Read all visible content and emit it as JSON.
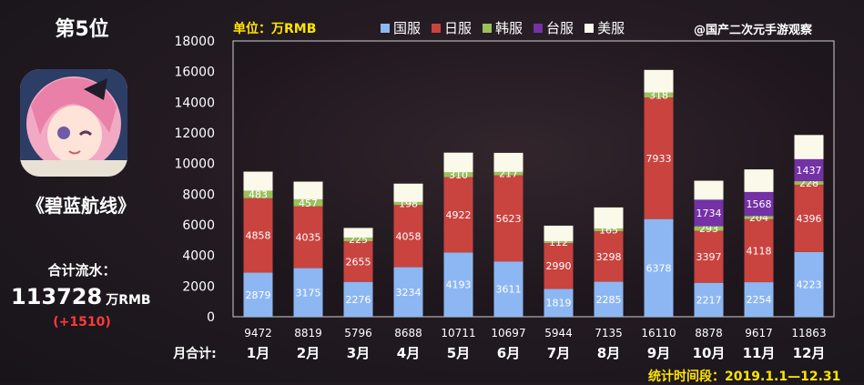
{
  "rank_label": "第5位",
  "game_title": "《碧蓝航线》",
  "total_label": "合计流水：",
  "total_value": "113728",
  "total_unit": "万RMB",
  "total_delta": "(+1510)",
  "unit_note": "单位：万RMB",
  "credit": "@国产二次元手游观察",
  "period_note": "统计时间段：2019.1.1—12.31",
  "monthly_total_label": "月合计:",
  "colors": {
    "cn": "#8db7f2",
    "jp": "#c9433f",
    "kr": "#9bc15a",
    "tw": "#7531a6",
    "us": "#fbf9ea"
  },
  "chart_data": {
    "type": "bar",
    "stacked": true,
    "categories": [
      "1月",
      "2月",
      "3月",
      "4月",
      "5月",
      "6月",
      "7月",
      "8月",
      "9月",
      "10月",
      "11月",
      "12月"
    ],
    "ylim": [
      0,
      18000
    ],
    "yticks": [
      0,
      2000,
      4000,
      6000,
      8000,
      10000,
      12000,
      14000,
      16000,
      18000
    ],
    "grid": false,
    "legend_position": "top",
    "series": [
      {
        "key": "cn",
        "name": "国服",
        "values": [
          2879,
          3175,
          2276,
          3234,
          4193,
          3611,
          1819,
          2285,
          6378,
          2217,
          2254,
          4223
        ]
      },
      {
        "key": "jp",
        "name": "日服",
        "values": [
          4858,
          4035,
          2655,
          4058,
          4922,
          5623,
          2990,
          3298,
          7933,
          3397,
          4118,
          4396
        ]
      },
      {
        "key": "kr",
        "name": "韩服",
        "values": [
          483,
          457,
          225,
          198,
          310,
          217,
          112,
          165,
          318,
          293,
          204,
          228
        ]
      },
      {
        "key": "tw",
        "name": "台服",
        "values": [
          0,
          0,
          0,
          0,
          0,
          0,
          0,
          0,
          0,
          1734,
          1568,
          1437
        ]
      },
      {
        "key": "us",
        "name": "美服",
        "values": [
          1252,
          1152,
          640,
          1198,
          1286,
          1246,
          1023,
          1387,
          1481,
          1237,
          1473,
          1579
        ]
      }
    ],
    "labeled_series": [
      "cn",
      "jp",
      "kr",
      "tw"
    ],
    "totals": [
      9472,
      8819,
      5796,
      8688,
      10711,
      10697,
      5944,
      7135,
      16110,
      8878,
      9617,
      11863
    ]
  }
}
